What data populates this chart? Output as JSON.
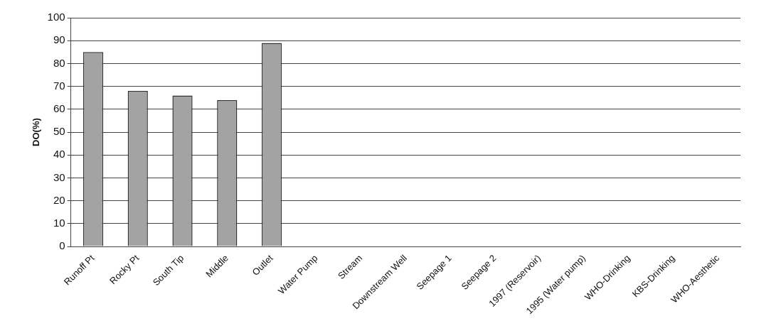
{
  "chart_data": {
    "type": "bar",
    "ylabel": "DO(%)",
    "categories": [
      "Runoff Pt",
      "Rocky Pt",
      "South Tip",
      "Middle",
      "Outlet",
      "Water Pump",
      "Stream",
      "Downstream Well",
      "Seepage 1",
      "Seepage 2",
      "1997 (Reservoir)",
      "1995 (Water pump)",
      "WHO-Drinking",
      "KBS-Drinking",
      "WHO-Aesthetic"
    ],
    "values": [
      85,
      68,
      66,
      64,
      89,
      null,
      null,
      null,
      null,
      null,
      null,
      null,
      null,
      null,
      null
    ],
    "color": "#a3a3a3",
    "ylim": [
      0,
      100
    ],
    "yticks": [
      0,
      10,
      20,
      30,
      40,
      50,
      60,
      70,
      80,
      90,
      100
    ],
    "grid": "y"
  }
}
